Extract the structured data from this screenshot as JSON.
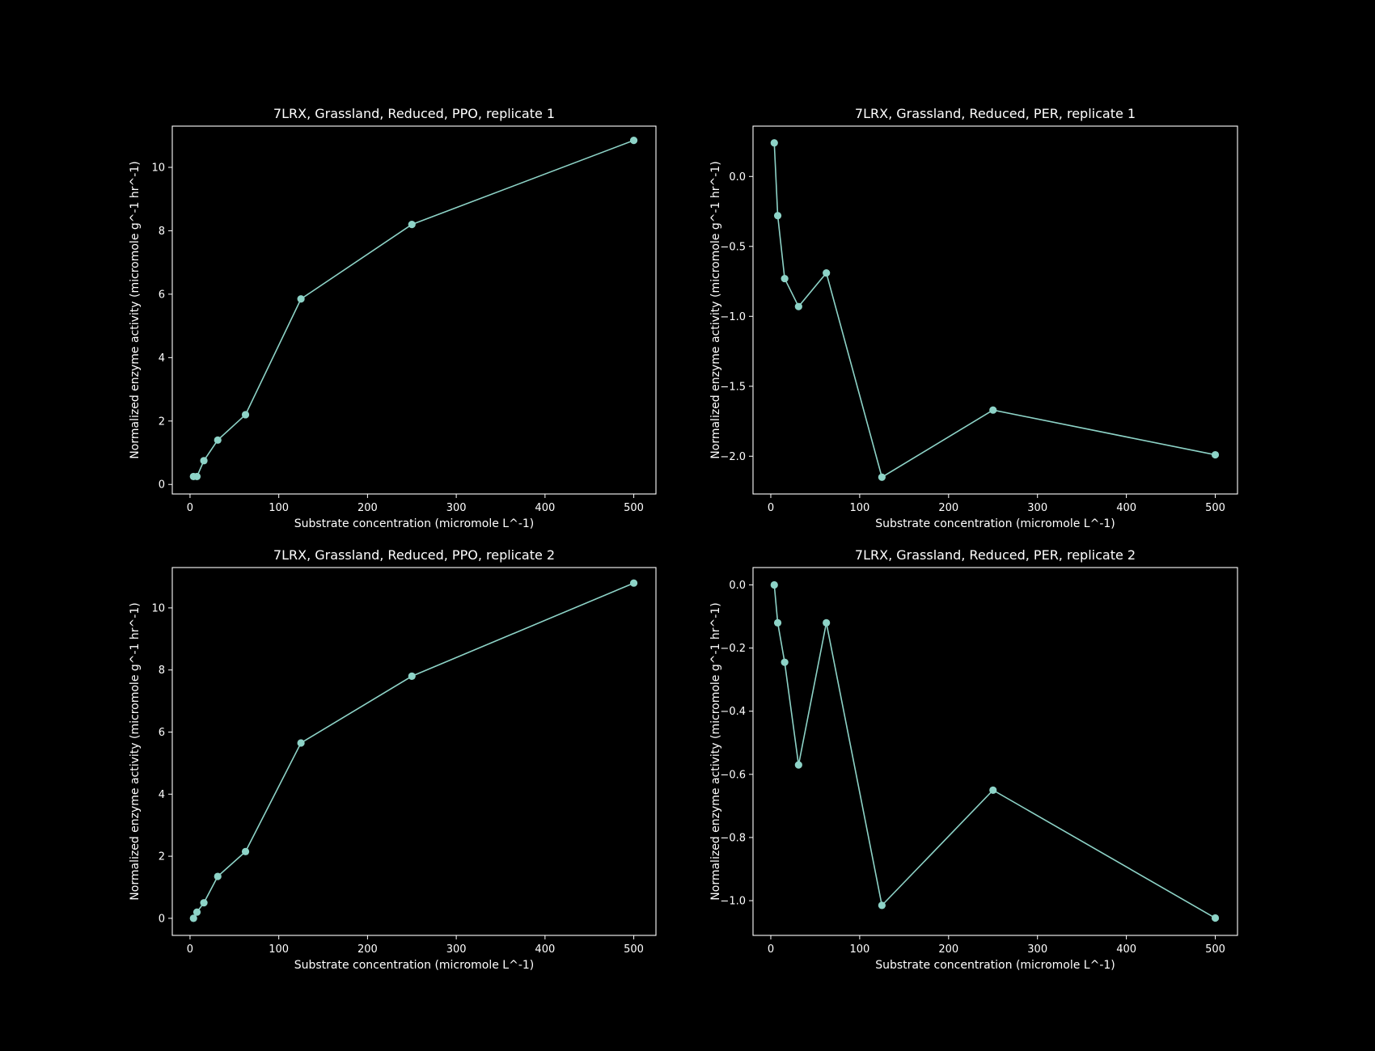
{
  "chart_data": [
    {
      "type": "line",
      "title": "7LRX, Grassland, Reduced, PPO, replicate 1",
      "xlabel": "Substrate concentration (micromole L^-1)",
      "ylabel": "Normalized enzyme activity (micromole g^-1 hr^-1)",
      "xlim": [
        -20,
        525
      ],
      "ylim": [
        -0.3,
        11.3
      ],
      "xticks": [
        0,
        100,
        200,
        300,
        400,
        500
      ],
      "yticks": [
        0,
        2,
        4,
        6,
        8,
        10
      ],
      "yticklabels": [
        "0",
        "2",
        "4",
        "6",
        "8",
        "10"
      ],
      "grid": false,
      "series": [
        {
          "color": "#8dd3c7",
          "x": [
            3.9,
            7.8,
            15.6,
            31.25,
            62.5,
            125,
            250,
            500
          ],
          "y": [
            0.25,
            0.25,
            0.75,
            1.4,
            2.2,
            5.85,
            8.2,
            10.85
          ]
        }
      ]
    },
    {
      "type": "line",
      "title": "7LRX, Grassland, Reduced, PER, replicate 1",
      "xlabel": "Substrate concentration (micromole L^-1)",
      "ylabel": "Normalized enzyme activity (micromole g^-1 hr^-1)",
      "xlim": [
        -20,
        525
      ],
      "ylim": [
        -2.27,
        0.36
      ],
      "xticks": [
        0,
        100,
        200,
        300,
        400,
        500
      ],
      "yticks": [
        0.0,
        -0.5,
        -1.0,
        -1.5,
        -2.0
      ],
      "yticklabels": [
        "0.0",
        "−0.5",
        "−1.0",
        "−1.5",
        "−2.0"
      ],
      "grid": false,
      "series": [
        {
          "color": "#8dd3c7",
          "x": [
            3.9,
            7.8,
            15.6,
            31.25,
            62.5,
            125,
            250,
            500
          ],
          "y": [
            0.24,
            -0.28,
            -0.73,
            -0.93,
            -0.69,
            -2.15,
            -1.67,
            -1.99
          ]
        }
      ]
    },
    {
      "type": "line",
      "title": "7LRX, Grassland, Reduced, PPO, replicate 2",
      "xlabel": "Substrate concentration (micromole L^-1)",
      "ylabel": "Normalized enzyme activity (micromole g^-1 hr^-1)",
      "xlim": [
        -20,
        525
      ],
      "ylim": [
        -0.55,
        11.3
      ],
      "xticks": [
        0,
        100,
        200,
        300,
        400,
        500
      ],
      "yticks": [
        0,
        2,
        4,
        6,
        8,
        10
      ],
      "yticklabels": [
        "0",
        "2",
        "4",
        "6",
        "8",
        "10"
      ],
      "grid": false,
      "series": [
        {
          "color": "#8dd3c7",
          "x": [
            3.9,
            7.8,
            15.6,
            31.25,
            62.5,
            125,
            250,
            500
          ],
          "y": [
            0.0,
            0.2,
            0.5,
            1.35,
            2.15,
            5.65,
            7.8,
            10.8
          ]
        }
      ]
    },
    {
      "type": "line",
      "title": "7LRX, Grassland, Reduced, PER, replicate 2",
      "xlabel": "Substrate concentration (micromole L^-1)",
      "ylabel": "Normalized enzyme activity (micromole g^-1 hr^-1)",
      "xlim": [
        -20,
        525
      ],
      "ylim": [
        -1.11,
        0.055
      ],
      "xticks": [
        0,
        100,
        200,
        300,
        400,
        500
      ],
      "yticks": [
        0.0,
        -0.2,
        -0.4,
        -0.6,
        -0.8,
        -1.0
      ],
      "yticklabels": [
        "0.0",
        "−0.2",
        "−0.4",
        "−0.6",
        "−0.8",
        "−1.0"
      ],
      "grid": false,
      "series": [
        {
          "color": "#8dd3c7",
          "x": [
            3.9,
            7.8,
            15.6,
            31.25,
            62.5,
            125,
            250,
            500
          ],
          "y": [
            0.0,
            -0.12,
            -0.245,
            -0.57,
            -0.12,
            -1.015,
            -0.65,
            -1.055
          ]
        }
      ]
    }
  ]
}
